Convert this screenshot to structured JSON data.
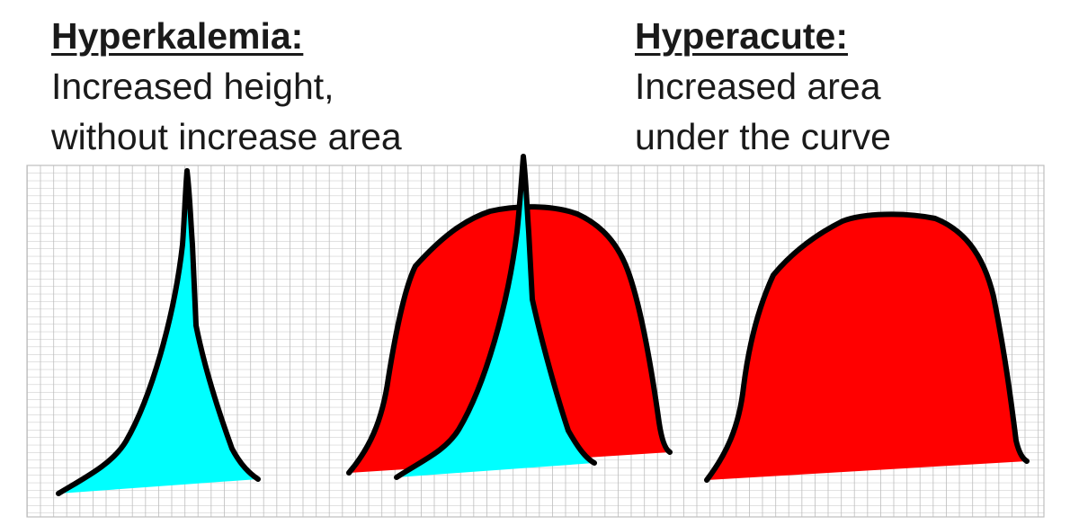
{
  "labels": {
    "hyperkalemia": {
      "title": "Hyperkalemia:",
      "line1": "Increased height,",
      "line2": "without increase area"
    },
    "hyperacute": {
      "title": "Hyperacute:",
      "line1": "Increased area",
      "line2": "under the curve"
    }
  },
  "colors": {
    "hyperkalemia_fill": "#00ffff",
    "hyperacute_fill": "#ff0000",
    "outline": "#000000",
    "grid": "#bdbdbd"
  }
}
